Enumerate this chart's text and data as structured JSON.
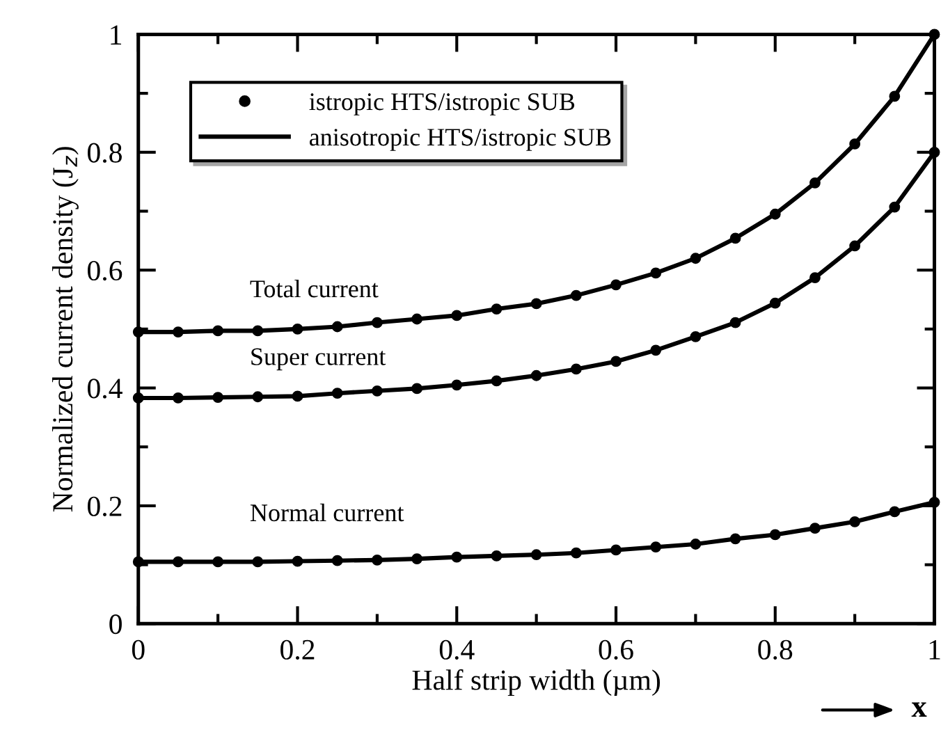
{
  "chart_data": {
    "type": "line",
    "xlabel": "Half strip width (µm)",
    "ylabel": "Normalized current density (J$_{z}$)",
    "x": [
      0,
      0.05,
      0.1,
      0.15,
      0.2,
      0.25,
      0.3,
      0.35,
      0.4,
      0.45,
      0.5,
      0.55,
      0.6,
      0.65,
      0.7,
      0.75,
      0.8,
      0.85,
      0.9,
      0.95,
      1.0
    ],
    "series": [
      {
        "name": "istropic HTS/istropic SUB",
        "type": "scatter",
        "marker": "circle",
        "color": "#000000",
        "values": [
          0.495,
          0.495,
          0.497,
          0.497,
          0.5,
          0.504,
          0.511,
          0.517,
          0.523,
          0.534,
          0.543,
          0.557,
          0.575,
          0.595,
          0.62,
          0.654,
          0.695,
          0.748,
          0.814,
          0.895,
          1.0
        ]
      },
      {
        "name": "anisotropic HTS/istropic SUB",
        "line_style": "solid",
        "color": "#000000",
        "values": [
          0.495,
          0.495,
          0.497,
          0.497,
          0.5,
          0.504,
          0.511,
          0.517,
          0.523,
          0.534,
          0.543,
          0.557,
          0.575,
          0.595,
          0.62,
          0.654,
          0.695,
          0.748,
          0.814,
          0.895,
          1.0
        ]
      },
      {
        "type": "scatter",
        "marker": "circle",
        "color": "#000000",
        "values": [
          0.383,
          0.383,
          0.384,
          0.385,
          0.386,
          0.391,
          0.395,
          0.399,
          0.405,
          0.412,
          0.421,
          0.432,
          0.445,
          0.464,
          0.487,
          0.511,
          0.544,
          0.587,
          0.641,
          0.707,
          0.8
        ]
      },
      {
        "line_style": "solid",
        "color": "#000000",
        "values": [
          0.383,
          0.383,
          0.384,
          0.385,
          0.386,
          0.391,
          0.395,
          0.399,
          0.405,
          0.412,
          0.421,
          0.432,
          0.445,
          0.464,
          0.487,
          0.511,
          0.544,
          0.587,
          0.641,
          0.707,
          0.8
        ]
      },
      {
        "type": "scatter",
        "marker": "circle",
        "color": "#000000",
        "values": [
          0.105,
          0.105,
          0.105,
          0.105,
          0.106,
          0.107,
          0.108,
          0.11,
          0.113,
          0.115,
          0.117,
          0.12,
          0.125,
          0.13,
          0.135,
          0.144,
          0.151,
          0.162,
          0.173,
          0.19,
          0.206
        ]
      },
      {
        "line_style": "solid",
        "color": "#000000",
        "values": [
          0.105,
          0.105,
          0.105,
          0.105,
          0.106,
          0.107,
          0.108,
          0.11,
          0.113,
          0.115,
          0.117,
          0.12,
          0.125,
          0.13,
          0.135,
          0.144,
          0.151,
          0.162,
          0.173,
          0.19,
          0.206
        ]
      }
    ],
    "annotations": [
      "Total current",
      "Super current",
      "Normal current",
      "x"
    ],
    "xlim": [
      0,
      1
    ],
    "ylim": [
      0,
      1
    ],
    "xticks": [
      0,
      {
        "value": 0.1,
        "label": null
      },
      0.2,
      {
        "value": 0.3,
        "label": null
      },
      0.4,
      {
        "value": 0.5,
        "label": null
      },
      0.6,
      {
        "value": 0.7,
        "label": null
      },
      0.8,
      {
        "value": 0.9,
        "label": null
      },
      1
    ],
    "yticks": [
      0,
      {
        "value": 0.1,
        "label": null
      },
      0.2,
      {
        "value": 0.3,
        "label": null
      },
      0.4,
      {
        "value": 0.5,
        "label": null
      },
      0.6,
      {
        "value": 0.7,
        "label": null
      },
      0.8,
      {
        "value": 0.9,
        "label": null
      },
      1
    ],
    "grid": false,
    "legend": "top left"
  }
}
